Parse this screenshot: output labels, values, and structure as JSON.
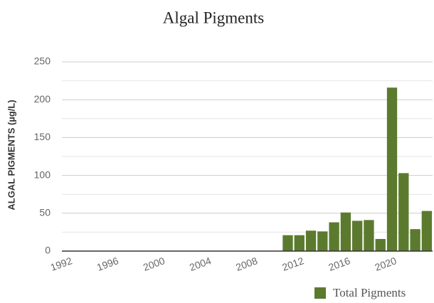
{
  "chart_data": {
    "type": "bar",
    "title": "Algal Pigments",
    "ylabel": "ALGAL PIGMENTS (µg/L)",
    "categories": [
      "1992",
      null,
      null,
      null,
      "1996",
      null,
      null,
      null,
      "2000",
      null,
      null,
      null,
      "2004",
      null,
      null,
      null,
      "2008",
      null,
      null,
      null,
      "2012",
      null,
      null,
      null,
      "2016",
      null,
      null,
      null,
      "2020",
      null,
      null,
      null
    ],
    "series": [
      {
        "name": "Total Pigments",
        "color": "#5b7a2e",
        "values": [
          null,
          null,
          null,
          null,
          null,
          null,
          null,
          null,
          null,
          null,
          null,
          null,
          null,
          null,
          null,
          null,
          null,
          null,
          null,
          21,
          21,
          27,
          26,
          38,
          51,
          40,
          41,
          16,
          216,
          103,
          29,
          53
        ]
      }
    ],
    "ylim": [
      0,
      250
    ],
    "yticks": [
      0,
      50,
      100,
      150,
      200,
      250
    ],
    "y_minor_ticks": [
      25,
      75,
      125,
      175,
      225
    ],
    "grid": true,
    "legend": "bottom-right"
  }
}
